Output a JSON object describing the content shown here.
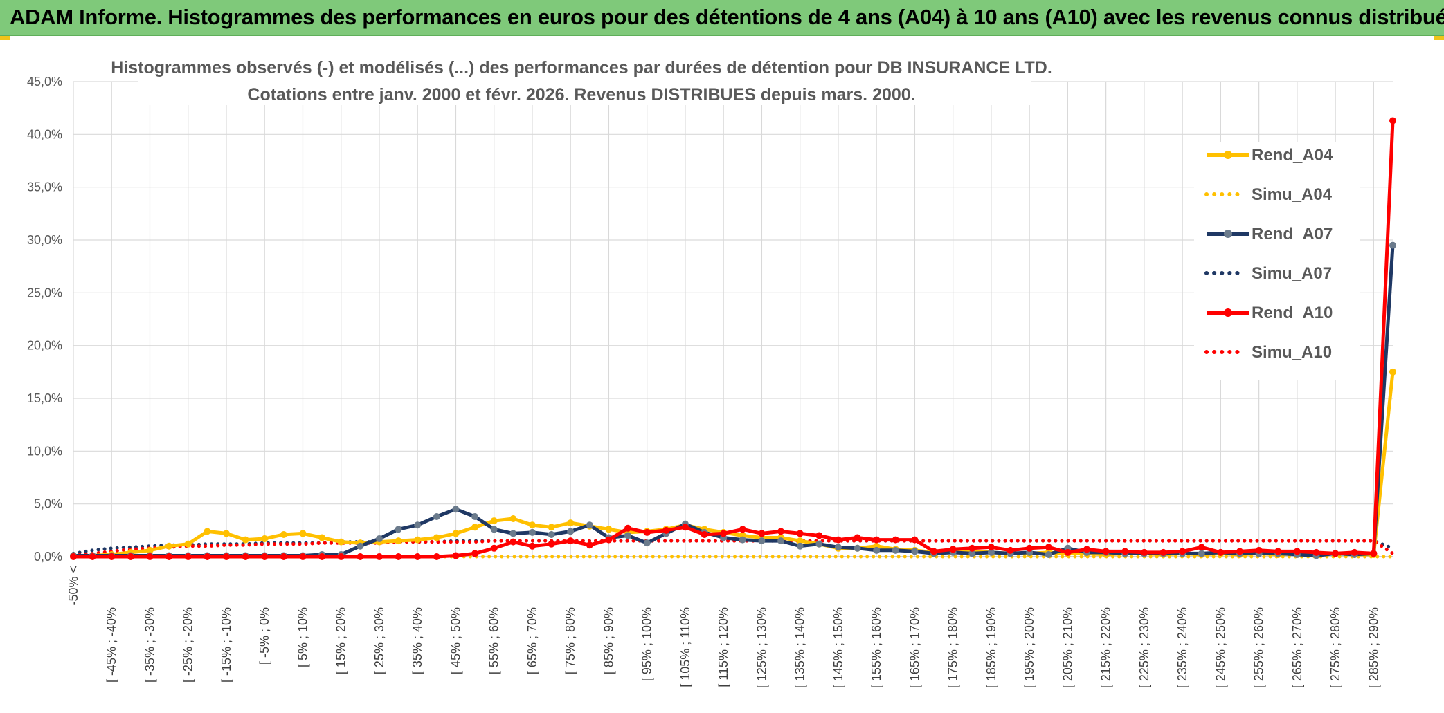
{
  "banner": {
    "title": "ADAM Informe. Histogrammes des performances en euros pour des détentions de 4 ans (A04) à 10 ans (A10) avec les revenus connus distribués"
  },
  "colors": {
    "banner_bg": "#7fc97a",
    "A04": "#ffc000",
    "A07": "#1f3864",
    "A07_marker": "#6b7b8c",
    "A10": "#ff0000"
  },
  "chart_data": {
    "type": "line",
    "title": "Histogrammes observés (-) et modélisés (...) des performances par durées de détention pour DB INSURANCE LTD.",
    "subtitle": "Cotations entre janv. 2000 et févr. 2026. Revenus DISTRIBUES depuis mars. 2000.",
    "xlabel": "",
    "ylabel": "",
    "ylim": [
      0,
      45
    ],
    "yticks": [
      "0,0%",
      "5,0%",
      "10,0%",
      "15,0%",
      "20,0%",
      "25,0%",
      "30,0%",
      "35,0%",
      "40,0%",
      "45,0%"
    ],
    "grid": true,
    "legend_position": "top-right",
    "x_tick_labels": [
      "-50% <",
      "[ -45% ; -40%",
      "[ -35% ; -30%",
      "[ -25% ; -20%",
      "[ -15% ; -10%",
      "[ -5% ; 0%",
      "[ 5% ; 10%",
      "[ 15% ; 20%",
      "[ 25% ; 30%",
      "[ 35% ; 40%",
      "[ 45% ; 50%",
      "[ 55% ; 60%",
      "[ 65% ; 70%",
      "[ 75% ; 80%",
      "[ 85% ; 90%",
      "[ 95% ; 100%",
      "[ 105% ; 110%",
      "[ 115% ; 120%",
      "[ 125% ; 130%",
      "[ 135% ; 140%",
      "[ 145% ; 150%",
      "[ 155% ; 160%",
      "[ 165% ; 170%",
      "[ 175% ; 180%",
      "[ 185% ; 190%",
      "[ 195% ; 200%",
      "[ 205% ; 210%",
      "[ 215% ; 220%",
      "[ 225% ; 230%",
      "[ 235% ; 240%",
      "[ 245% ; 250%",
      "[ 255% ; 260%",
      "[ 265% ; 270%",
      "[ 275% ; 280%",
      "[ 285% ; 290%"
    ],
    "category_count": 70,
    "series": [
      {
        "name": "Rend_A04",
        "style": "solid",
        "values": [
          0.1,
          0.1,
          0.2,
          0.4,
          0.6,
          1.0,
          1.2,
          2.4,
          2.2,
          1.6,
          1.7,
          2.1,
          2.2,
          1.8,
          1.4,
          1.3,
          1.4,
          1.5,
          1.6,
          1.8,
          2.2,
          2.8,
          3.4,
          3.6,
          3.0,
          2.8,
          3.2,
          2.9,
          2.6,
          2.3,
          2.4,
          2.6,
          3.0,
          2.6,
          2.3,
          2.0,
          1.8,
          1.8,
          1.5,
          1.2,
          0.8,
          0.8,
          1.0,
          0.7,
          0.6,
          0.4,
          0.5,
          0.5,
          0.4,
          0.3,
          0.3,
          0.4,
          0.3,
          0.3,
          0.2,
          0.3,
          0.3,
          0.2,
          0.3,
          0.2,
          0.3,
          0.2,
          0.3,
          0.2,
          0.3,
          0.2,
          0.3,
          0.2,
          0.2,
          17.5
        ]
      },
      {
        "name": "Simu_A04",
        "style": "dotted",
        "values": [
          0,
          0,
          0,
          0,
          0,
          0,
          0,
          0,
          0,
          0,
          0,
          0,
          0,
          0,
          0,
          0,
          0,
          0,
          0,
          0,
          0,
          0,
          0,
          0,
          0,
          0,
          0,
          0,
          0,
          0,
          0,
          0,
          0,
          0,
          0,
          0,
          0,
          0,
          0,
          0,
          0,
          0,
          0,
          0,
          0,
          0,
          0,
          0,
          0,
          0,
          0,
          0,
          0,
          0,
          0,
          0,
          0,
          0,
          0,
          0,
          0,
          0,
          0,
          0,
          0,
          0,
          0,
          0,
          0,
          0
        ]
      },
      {
        "name": "Rend_A07",
        "style": "solid",
        "values": [
          0.1,
          0.1,
          0.1,
          0.1,
          0.1,
          0.1,
          0.1,
          0.1,
          0.1,
          0.1,
          0.1,
          0.1,
          0.1,
          0.2,
          0.2,
          1.0,
          1.7,
          2.6,
          3.0,
          3.8,
          4.5,
          3.8,
          2.6,
          2.2,
          2.3,
          2.1,
          2.4,
          3.0,
          1.8,
          2.0,
          1.3,
          2.2,
          3.1,
          2.3,
          1.8,
          1.6,
          1.5,
          1.5,
          1.0,
          1.2,
          0.9,
          0.8,
          0.6,
          0.6,
          0.5,
          0.3,
          0.4,
          0.3,
          0.4,
          0.3,
          0.4,
          0.2,
          0.8,
          0.4,
          0.4,
          0.3,
          0.3,
          0.3,
          0.3,
          0.3,
          0.4,
          0.3,
          0.3,
          0.3,
          0.2,
          0.1,
          0.3,
          0.2,
          0.3,
          29.5
        ]
      },
      {
        "name": "Simu_A07",
        "style": "dotted",
        "values": [
          0.3,
          0.6,
          0.8,
          0.9,
          1.0,
          1.1,
          1.1,
          1.2,
          1.2,
          1.2,
          1.3,
          1.3,
          1.3,
          1.3,
          1.4,
          1.4,
          1.4,
          1.4,
          1.4,
          1.4,
          1.5,
          1.5,
          1.5,
          1.5,
          1.5,
          1.5,
          1.5,
          1.5,
          1.5,
          1.5,
          1.5,
          1.5,
          1.5,
          1.5,
          1.5,
          1.5,
          1.5,
          1.5,
          1.5,
          1.5,
          1.5,
          1.5,
          1.5,
          1.5,
          1.5,
          1.5,
          1.5,
          1.5,
          1.5,
          1.5,
          1.5,
          1.5,
          1.5,
          1.5,
          1.5,
          1.5,
          1.5,
          1.5,
          1.5,
          1.5,
          1.5,
          1.5,
          1.5,
          1.5,
          1.5,
          1.5,
          1.5,
          1.5,
          1.5,
          0.8
        ]
      },
      {
        "name": "Rend_A10",
        "style": "solid",
        "values": [
          0.0,
          0.0,
          0.0,
          0.0,
          0.0,
          0.0,
          0.0,
          0.0,
          0.0,
          0.0,
          0.0,
          0.0,
          0.0,
          0.0,
          0.0,
          0.0,
          0.0,
          0.0,
          0.0,
          0.0,
          0.1,
          0.3,
          0.8,
          1.4,
          1.0,
          1.2,
          1.5,
          1.1,
          1.6,
          2.7,
          2.3,
          2.5,
          2.8,
          2.1,
          2.2,
          2.6,
          2.2,
          2.4,
          2.2,
          2.0,
          1.6,
          1.8,
          1.6,
          1.6,
          1.6,
          0.5,
          0.7,
          0.8,
          0.9,
          0.6,
          0.8,
          0.9,
          0.4,
          0.7,
          0.5,
          0.5,
          0.4,
          0.4,
          0.5,
          0.9,
          0.4,
          0.5,
          0.6,
          0.5,
          0.5,
          0.4,
          0.3,
          0.4,
          0.3,
          41.3
        ]
      },
      {
        "name": "Simu_A10",
        "style": "dotted",
        "values": [
          0.1,
          0.3,
          0.5,
          0.7,
          0.8,
          0.9,
          1.0,
          1.0,
          1.1,
          1.1,
          1.2,
          1.2,
          1.2,
          1.3,
          1.3,
          1.3,
          1.3,
          1.4,
          1.4,
          1.4,
          1.4,
          1.4,
          1.5,
          1.5,
          1.5,
          1.5,
          1.5,
          1.5,
          1.5,
          1.5,
          1.5,
          1.5,
          1.5,
          1.5,
          1.5,
          1.5,
          1.5,
          1.5,
          1.5,
          1.5,
          1.5,
          1.5,
          1.5,
          1.5,
          1.5,
          1.5,
          1.5,
          1.5,
          1.5,
          1.5,
          1.5,
          1.5,
          1.5,
          1.5,
          1.5,
          1.5,
          1.5,
          1.5,
          1.5,
          1.5,
          1.5,
          1.5,
          1.5,
          1.5,
          1.5,
          1.5,
          1.5,
          1.5,
          1.5,
          0.3
        ]
      }
    ]
  }
}
